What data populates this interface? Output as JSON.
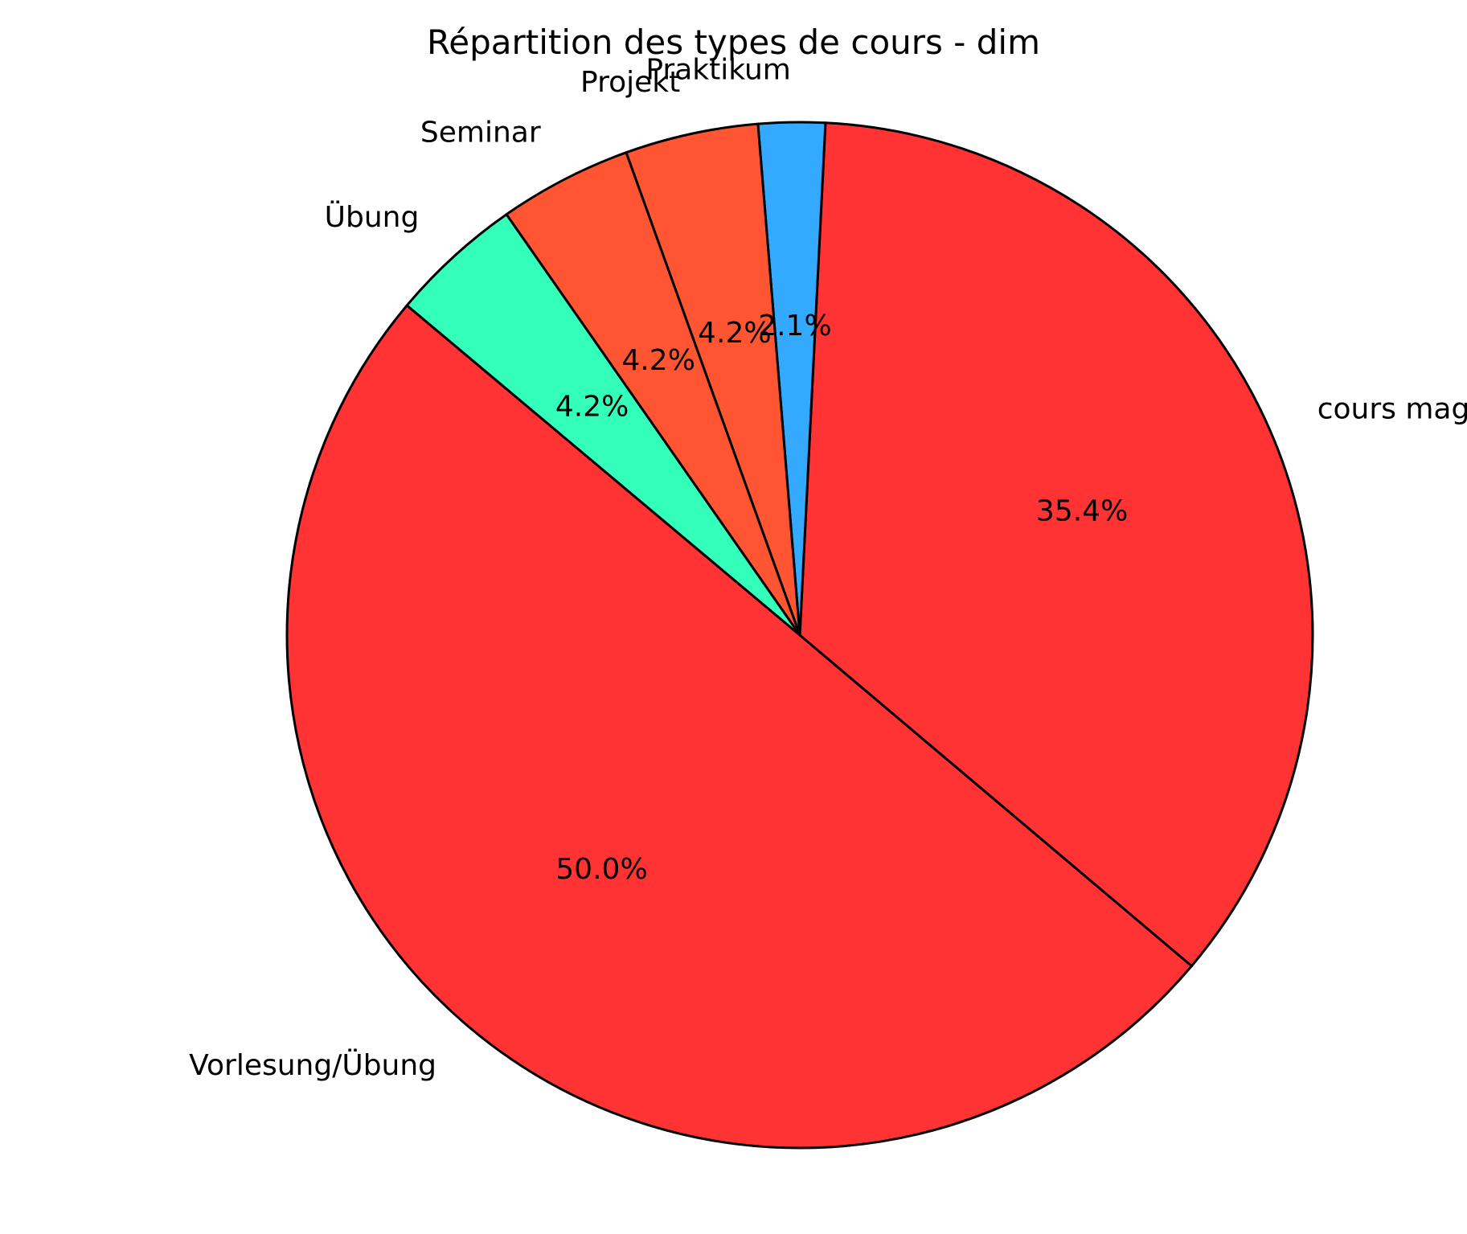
{
  "chart_data": {
    "type": "pie",
    "title": "Répartition des types de cours - dim",
    "start_angle_deg": 140,
    "direction": "counterclockwise",
    "edge_color": "#000000",
    "slices": [
      {
        "label": "Vorlesung/Übung",
        "value": 50.0,
        "pct_label": "50.0%",
        "color": "#ff3333"
      },
      {
        "label": "cours magistral",
        "value": 35.4,
        "pct_label": "35.4%",
        "color": "#ff3333"
      },
      {
        "label": "Praktikum",
        "value": 2.1,
        "pct_label": "2.1%",
        "color": "#33aaff"
      },
      {
        "label": "Projekt",
        "value": 4.2,
        "pct_label": "4.2%",
        "color": "#ff5533"
      },
      {
        "label": "Seminar",
        "value": 4.2,
        "pct_label": "4.2%",
        "color": "#ff5533"
      },
      {
        "label": "Übung",
        "value": 4.2,
        "pct_label": "4.2%",
        "color": "#33ffbb"
      }
    ]
  }
}
